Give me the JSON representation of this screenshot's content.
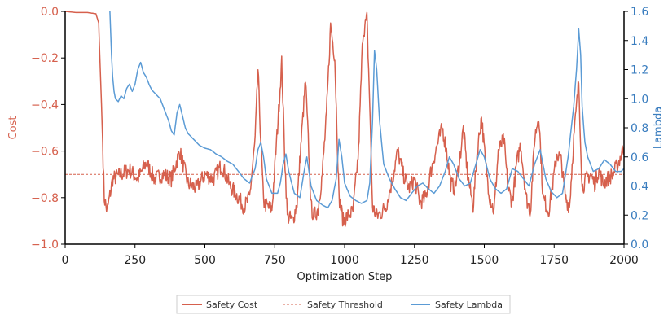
{
  "chart_data": {
    "type": "line",
    "title": "",
    "xlabel": "Optimization Step",
    "ylabel_left": "Cost",
    "ylabel_right": "Lambda",
    "xlim": [
      0,
      2000
    ],
    "ylim_left": [
      -1.0,
      0.0
    ],
    "ylim_right": [
      0.0,
      1.6
    ],
    "x_ticks": [
      0,
      250,
      500,
      750,
      1000,
      1250,
      1500,
      1750,
      2000
    ],
    "x_tick_labels": [
      "0",
      "250",
      "500",
      "750",
      "1000",
      "1250",
      "1500",
      "1750",
      "2000"
    ],
    "y_left_ticks": [
      0.0,
      -0.2,
      -0.4,
      -0.6,
      -0.8,
      -1.0
    ],
    "y_left_tick_labels": [
      "0.0",
      "−0.2",
      "−0.4",
      "−0.6",
      "−0.8",
      "−1.0"
    ],
    "y_right_ticks": [
      0.0,
      0.2,
      0.4,
      0.6,
      0.8,
      1.0,
      1.2,
      1.4,
      1.6
    ],
    "y_right_tick_labels": [
      "0.0",
      "0.2",
      "0.4",
      "0.6",
      "0.8",
      "1.0",
      "1.2",
      "1.4",
      "1.6"
    ],
    "grid": false,
    "legend_position": "bottom-center",
    "colors": {
      "cost": "#d6604d",
      "lambda": "#5b9bd5",
      "axis_left": "#d6604d",
      "axis_right": "#3a7dbf",
      "axes": "#000000"
    },
    "series": [
      {
        "name": "Safety Cost",
        "axis": "left",
        "style": "solid",
        "x": [
          0,
          40,
          80,
          110,
          120,
          130,
          140,
          150,
          170,
          200,
          230,
          260,
          290,
          320,
          350,
          380,
          410,
          440,
          470,
          500,
          530,
          560,
          590,
          620,
          640,
          660,
          680,
          690,
          700,
          710,
          725,
          740,
          760,
          775,
          785,
          795,
          815,
          830,
          845,
          860,
          870,
          880,
          890,
          905,
          920,
          935,
          950,
          965,
          980,
          995,
          1010,
          1030,
          1050,
          1065,
          1080,
          1090,
          1100,
          1115,
          1135,
          1150,
          1170,
          1190,
          1210,
          1230,
          1250,
          1270,
          1290,
          1310,
          1330,
          1350,
          1365,
          1380,
          1395,
          1410,
          1425,
          1440,
          1460,
          1475,
          1490,
          1505,
          1520,
          1535,
          1550,
          1570,
          1585,
          1600,
          1615,
          1630,
          1650,
          1665,
          1680,
          1695,
          1710,
          1730,
          1745,
          1760,
          1775,
          1790,
          1805,
          1820,
          1838,
          1850,
          1865,
          1880,
          1895,
          1910,
          1925,
          1940,
          1960,
          1980,
          2000
        ],
        "values": [
          0.0,
          -0.005,
          -0.005,
          -0.01,
          -0.05,
          -0.4,
          -0.8,
          -0.86,
          -0.72,
          -0.7,
          -0.68,
          -0.72,
          -0.65,
          -0.72,
          -0.7,
          -0.72,
          -0.6,
          -0.74,
          -0.76,
          -0.7,
          -0.72,
          -0.66,
          -0.75,
          -0.8,
          -0.84,
          -0.8,
          -0.55,
          -0.25,
          -0.55,
          -0.82,
          -0.84,
          -0.85,
          -0.5,
          -0.22,
          -0.6,
          -0.88,
          -0.9,
          -0.82,
          -0.55,
          -0.3,
          -0.55,
          -0.84,
          -0.88,
          -0.85,
          -0.7,
          -0.45,
          -0.06,
          -0.2,
          -0.8,
          -0.9,
          -0.88,
          -0.86,
          -0.6,
          -0.1,
          -0.03,
          -0.4,
          -0.84,
          -0.88,
          -0.86,
          -0.83,
          -0.73,
          -0.6,
          -0.7,
          -0.76,
          -0.72,
          -0.82,
          -0.8,
          -0.68,
          -0.58,
          -0.5,
          -0.6,
          -0.74,
          -0.76,
          -0.66,
          -0.5,
          -0.7,
          -0.84,
          -0.6,
          -0.45,
          -0.66,
          -0.8,
          -0.86,
          -0.6,
          -0.55,
          -0.76,
          -0.82,
          -0.66,
          -0.57,
          -0.8,
          -0.86,
          -0.55,
          -0.44,
          -0.8,
          -0.86,
          -0.74,
          -0.61,
          -0.64,
          -0.8,
          -0.84,
          -0.55,
          -0.3,
          -0.76,
          -0.72,
          -0.7,
          -0.74,
          -0.68,
          -0.74,
          -0.72,
          -0.7,
          -0.65,
          -0.58
        ]
      },
      {
        "name": "Safety Threshold",
        "axis": "left",
        "style": "dashed",
        "x": [
          0,
          2000
        ],
        "values": [
          -0.7,
          -0.7
        ]
      },
      {
        "name": "Safety Lambda",
        "axis": "right",
        "style": "solid",
        "x": [
          160,
          163,
          166,
          170,
          175,
          180,
          190,
          200,
          210,
          220,
          230,
          240,
          250,
          260,
          270,
          280,
          290,
          300,
          310,
          320,
          330,
          340,
          350,
          360,
          370,
          380,
          390,
          400,
          410,
          420,
          430,
          440,
          460,
          480,
          500,
          520,
          540,
          560,
          580,
          600,
          620,
          640,
          660,
          680,
          690,
          700,
          710,
          720,
          740,
          760,
          770,
          780,
          790,
          800,
          820,
          840,
          855,
          865,
          880,
          900,
          920,
          940,
          955,
          970,
          980,
          990,
          1000,
          1020,
          1040,
          1060,
          1080,
          1090,
          1100,
          1107,
          1115,
          1125,
          1140,
          1160,
          1180,
          1200,
          1220,
          1240,
          1260,
          1280,
          1300,
          1320,
          1340,
          1360,
          1375,
          1390,
          1410,
          1430,
          1450,
          1470,
          1485,
          1500,
          1520,
          1540,
          1560,
          1580,
          1600,
          1620,
          1640,
          1660,
          1680,
          1700,
          1710,
          1720,
          1740,
          1760,
          1780,
          1800,
          1820,
          1830,
          1838,
          1845,
          1850,
          1860,
          1870,
          1890,
          1910,
          1930,
          1950,
          1970,
          1990,
          2000
        ],
        "values": [
          1.6,
          1.45,
          1.3,
          1.15,
          1.05,
          1.0,
          0.98,
          1.02,
          1.0,
          1.07,
          1.1,
          1.05,
          1.1,
          1.2,
          1.25,
          1.18,
          1.15,
          1.1,
          1.06,
          1.04,
          1.02,
          1.0,
          0.95,
          0.9,
          0.85,
          0.78,
          0.75,
          0.9,
          0.96,
          0.88,
          0.8,
          0.76,
          0.72,
          0.68,
          0.66,
          0.65,
          0.62,
          0.6,
          0.57,
          0.55,
          0.5,
          0.45,
          0.42,
          0.52,
          0.65,
          0.7,
          0.6,
          0.45,
          0.35,
          0.35,
          0.42,
          0.55,
          0.62,
          0.5,
          0.35,
          0.32,
          0.5,
          0.6,
          0.4,
          0.3,
          0.27,
          0.25,
          0.3,
          0.45,
          0.72,
          0.6,
          0.42,
          0.33,
          0.3,
          0.28,
          0.3,
          0.42,
          0.85,
          1.33,
          1.2,
          0.85,
          0.55,
          0.45,
          0.38,
          0.32,
          0.3,
          0.35,
          0.4,
          0.42,
          0.38,
          0.35,
          0.4,
          0.5,
          0.6,
          0.55,
          0.45,
          0.4,
          0.42,
          0.55,
          0.65,
          0.6,
          0.45,
          0.38,
          0.35,
          0.38,
          0.52,
          0.5,
          0.45,
          0.4,
          0.55,
          0.65,
          0.55,
          0.45,
          0.36,
          0.32,
          0.35,
          0.6,
          0.95,
          1.2,
          1.48,
          1.3,
          0.95,
          0.7,
          0.6,
          0.5,
          0.52,
          0.58,
          0.55,
          0.5,
          0.5,
          0.52
        ]
      }
    ]
  }
}
